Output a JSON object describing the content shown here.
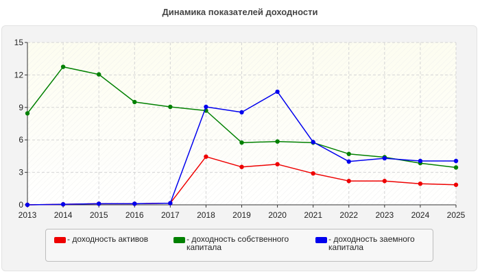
{
  "chart_data": {
    "type": "line",
    "title": "Динамика показателей доходности",
    "x": [
      "2013",
      "2014",
      "2015",
      "2016",
      "2017",
      "2018",
      "2019",
      "2020",
      "2021",
      "2022",
      "2023",
      "2024",
      "2025"
    ],
    "ylim": [
      0,
      15
    ],
    "yticks": [
      "0",
      "3",
      "6",
      "9",
      "12",
      "15"
    ],
    "grid": true,
    "legend_position": "bottom",
    "series": [
      {
        "name": "- доходность активов",
        "color": "#ee0000",
        "values": [
          0.0,
          0.05,
          0.1,
          0.1,
          0.15,
          4.45,
          3.5,
          3.75,
          2.9,
          2.2,
          2.2,
          1.95,
          1.85
        ]
      },
      {
        "name": "- доходность собственного капитала",
        "color": "#008000",
        "values": [
          8.45,
          12.75,
          12.05,
          9.5,
          9.05,
          8.7,
          5.75,
          5.85,
          5.75,
          4.7,
          4.4,
          3.85,
          3.45
        ]
      },
      {
        "name": "- доходность заемного капитала",
        "color": "#0000ee",
        "values": [
          0.0,
          0.05,
          0.1,
          0.1,
          0.15,
          9.05,
          8.55,
          10.45,
          5.8,
          4.0,
          4.3,
          4.05,
          4.05
        ]
      }
    ]
  }
}
